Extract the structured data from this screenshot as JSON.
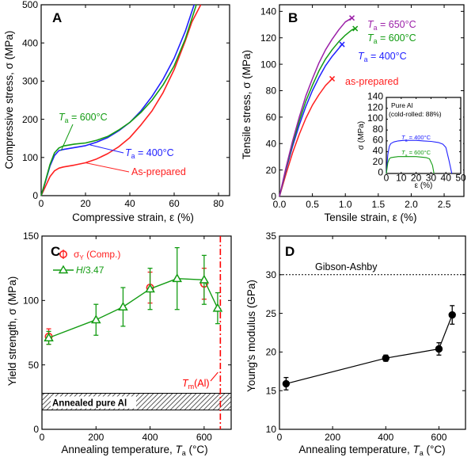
{
  "figure": {
    "panels": [
      "A",
      "B",
      "C",
      "D"
    ],
    "colors": {
      "as_prepared": "#ff2020",
      "ta400": "#2020ff",
      "ta600": "#139c13",
      "ta650": "#9b1fa8",
      "yield_comp": "#ff2020",
      "hardness": "#139c13",
      "tm_line": "#ff0000",
      "modulus": "#000000",
      "gibson_ashby": "#000000"
    }
  },
  "chart_data": [
    {
      "panel": "A",
      "type": "line",
      "xlabel": "Compressive strain, ε (%)",
      "ylabel": "Compressive stress, σ (MPa)",
      "xlim": [
        0,
        85
      ],
      "ylim": [
        0,
        500
      ],
      "xticks": [
        "0",
        "20",
        "40",
        "60",
        "80"
      ],
      "yticks": [
        "0",
        "100",
        "200",
        "300",
        "400",
        "500"
      ],
      "series": [
        {
          "name": "As-prepared",
          "color": "as_prepared",
          "x": [
            0,
            2,
            4,
            6,
            8,
            10,
            15,
            20,
            25,
            30,
            35,
            40,
            45,
            50,
            55,
            60,
            65,
            68,
            72
          ],
          "y": [
            0,
            25,
            50,
            65,
            72,
            75,
            80,
            86,
            96,
            110,
            128,
            152,
            185,
            222,
            270,
            330,
            405,
            455,
            500
          ]
        },
        {
          "name": "Ta = 400°C",
          "color": "ta400",
          "x": [
            0,
            2,
            4,
            6,
            8,
            10,
            15,
            20,
            25,
            30,
            35,
            40,
            45,
            50,
            55,
            60,
            65,
            69
          ],
          "y": [
            0,
            38,
            78,
            105,
            118,
            121,
            126,
            131,
            140,
            152,
            170,
            192,
            222,
            260,
            305,
            360,
            430,
            500
          ]
        },
        {
          "name": "Ta = 600°C",
          "color": "ta600",
          "x": [
            0,
            2,
            4,
            6,
            8,
            10,
            15,
            20,
            25,
            30,
            35,
            40,
            45,
            50,
            55,
            60,
            65,
            70
          ],
          "y": [
            0,
            40,
            82,
            112,
            125,
            130,
            135,
            138,
            145,
            155,
            172,
            192,
            218,
            250,
            290,
            340,
            410,
            500
          ]
        }
      ],
      "labels": [
        {
          "text_prefix": "T",
          "subscript": "a",
          "suffix": " = 600°C",
          "color": "ta600"
        },
        {
          "text_prefix": "T",
          "subscript": "a",
          "suffix": " = 400°C",
          "color": "ta400"
        },
        {
          "text": "As-prepared",
          "color": "as_prepared"
        }
      ]
    },
    {
      "panel": "B",
      "type": "line",
      "xlabel": "Tensile strain, ε (%)",
      "ylabel": "Tensile stress, σ (MPa)",
      "xlim": [
        0,
        2.8
      ],
      "ylim": [
        0,
        145
      ],
      "xticks": [
        "0.0",
        "0.5",
        "1.0",
        "1.5",
        "2.0",
        "2.5"
      ],
      "yticks": [
        "0",
        "20",
        "40",
        "60",
        "80",
        "100",
        "120",
        "140"
      ],
      "series": [
        {
          "name": "as-prepared",
          "color": "as_prepared",
          "x": [
            0,
            0.1,
            0.2,
            0.3,
            0.4,
            0.5,
            0.6,
            0.7,
            0.8
          ],
          "y": [
            0,
            17,
            33,
            47,
            59,
            69,
            77,
            84,
            89
          ]
        },
        {
          "name": "Ta = 400°C",
          "color": "ta400",
          "x": [
            0,
            0.1,
            0.2,
            0.3,
            0.4,
            0.5,
            0.6,
            0.7,
            0.8,
            0.9,
            0.95
          ],
          "y": [
            0,
            20,
            38,
            54,
            68,
            80,
            90,
            99,
            106,
            112,
            115
          ]
        },
        {
          "name": "Ta = 600°C",
          "color": "ta600",
          "x": [
            0,
            0.1,
            0.2,
            0.3,
            0.4,
            0.5,
            0.6,
            0.7,
            0.8,
            0.9,
            1.0,
            1.1,
            1.15
          ],
          "y": [
            0,
            21,
            40,
            57,
            72,
            84,
            95,
            104,
            111,
            117,
            122,
            126,
            127
          ]
        },
        {
          "name": "Ta = 650°C",
          "color": "ta650",
          "x": [
            0,
            0.1,
            0.2,
            0.3,
            0.4,
            0.5,
            0.6,
            0.7,
            0.8,
            0.9,
            1.0,
            1.1
          ],
          "y": [
            0,
            22,
            42,
            60,
            76,
            89,
            101,
            111,
            119,
            126,
            132,
            135
          ]
        }
      ],
      "labels": [
        {
          "text_prefix": "T",
          "subscript": "a",
          "suffix": " = 650°C",
          "color": "ta650"
        },
        {
          "text_prefix": "T",
          "subscript": "a",
          "suffix": " = 600°C",
          "color": "ta600"
        },
        {
          "text_prefix": "T",
          "subscript": "a",
          "suffix": " = 400°C",
          "color": "ta400"
        },
        {
          "text": "as-prepared",
          "color": "as_prepared"
        }
      ],
      "inset": {
        "title_line1": "Pure Al",
        "title_line2": "(cold-rolled: 88%)",
        "xlabel": "ε (%)",
        "ylabel": "σ (MPa)",
        "xlim": [
          0,
          50
        ],
        "ylim": [
          0,
          140
        ],
        "xticks": [
          "0",
          "10",
          "20",
          "30",
          "40",
          "50"
        ],
        "yticks": [
          "0",
          "20",
          "40",
          "60",
          "80",
          "100",
          "120",
          "140"
        ],
        "series": [
          {
            "name": "Ta = 400°C",
            "color": "ta400",
            "x": [
              0,
              1,
              2,
              3,
              5,
              8,
              12,
              16,
              20,
              25,
              30,
              35,
              38,
              40,
              42,
              44
            ],
            "y": [
              0,
              35,
              50,
              55,
              58,
              60,
              61,
              61,
              61,
              60,
              59,
              57,
              54,
              48,
              25,
              0
            ]
          },
          {
            "name": "Ta = 600°C",
            "color": "ta600",
            "x": [
              0,
              1,
              2,
              3,
              5,
              8,
              12,
              16,
              20,
              24,
              27,
              29,
              31,
              32
            ],
            "y": [
              0,
              20,
              27,
              29,
              30,
              31,
              31,
              31,
              31,
              30,
              29,
              27,
              15,
              0
            ]
          }
        ],
        "labels": [
          {
            "text_prefix": "T",
            "subscript": "a",
            "suffix": " = 400°C",
            "color": "ta400"
          },
          {
            "text_prefix": "T",
            "subscript": "a",
            "suffix": " = 600°C",
            "color": "ta600"
          }
        ]
      }
    },
    {
      "panel": "C",
      "type": "scatter",
      "xlabel_prefix": "Annealing temperature, ",
      "xlabel_var": "T",
      "xlabel_sub": "a",
      "xlabel_suffix": " (°C)",
      "ylabel": "Yield strength, σ (MPa)",
      "xlim": [
        0,
        700
      ],
      "ylim": [
        0,
        150
      ],
      "xticks": [
        "0",
        "200",
        "400",
        "600"
      ],
      "yticks": [
        "0",
        "50",
        "100",
        "150"
      ],
      "series": [
        {
          "name": "σY (Comp.)",
          "legend_main": "σ",
          "legend_sub": "Y",
          "legend_suffix": " (Comp.)",
          "color": "yield_comp",
          "marker": "circle",
          "x": [
            25,
            400,
            600
          ],
          "y": [
            72,
            110,
            113
          ],
          "err": [
            6,
            12,
            12
          ]
        },
        {
          "name": "H/3.47",
          "legend_main": "H",
          "legend_suffix": "/3.47",
          "color": "hardness",
          "marker": "triangle",
          "line": true,
          "x": [
            25,
            200,
            300,
            400,
            500,
            600,
            650
          ],
          "y": [
            71,
            85,
            95,
            109,
            117,
            116,
            94
          ],
          "err": [
            5,
            12,
            15,
            16,
            24,
            19,
            12
          ]
        }
      ],
      "tm_line": {
        "x": 660,
        "label_main": "T",
        "label_sub": "m",
        "label_suffix": "(Al)"
      },
      "annealed_band": {
        "y_low": 15,
        "y_high": 28,
        "label": "Annealed pure Al"
      }
    },
    {
      "panel": "D",
      "type": "scatter",
      "xlabel_prefix": "Annealing temperature, ",
      "xlabel_var": "T",
      "xlabel_sub": "a",
      "xlabel_suffix": " (°C)",
      "ylabel": "Young's modulus (GPa)",
      "xlim": [
        0,
        700
      ],
      "ylim": [
        10,
        35
      ],
      "xticks": [
        "0",
        "200",
        "400",
        "600"
      ],
      "yticks": [
        "10",
        "15",
        "20",
        "25",
        "30",
        "35"
      ],
      "series": [
        {
          "name": "modulus",
          "color": "modulus",
          "marker": "filled-circle",
          "line": true,
          "x": [
            25,
            400,
            600,
            650
          ],
          "y": [
            15.9,
            19.2,
            20.4,
            24.8
          ],
          "err": [
            0.8,
            0.4,
            0.8,
            1.2
          ]
        }
      ],
      "reference": {
        "label": "Gibson-Ashby",
        "y": 30
      }
    }
  ]
}
